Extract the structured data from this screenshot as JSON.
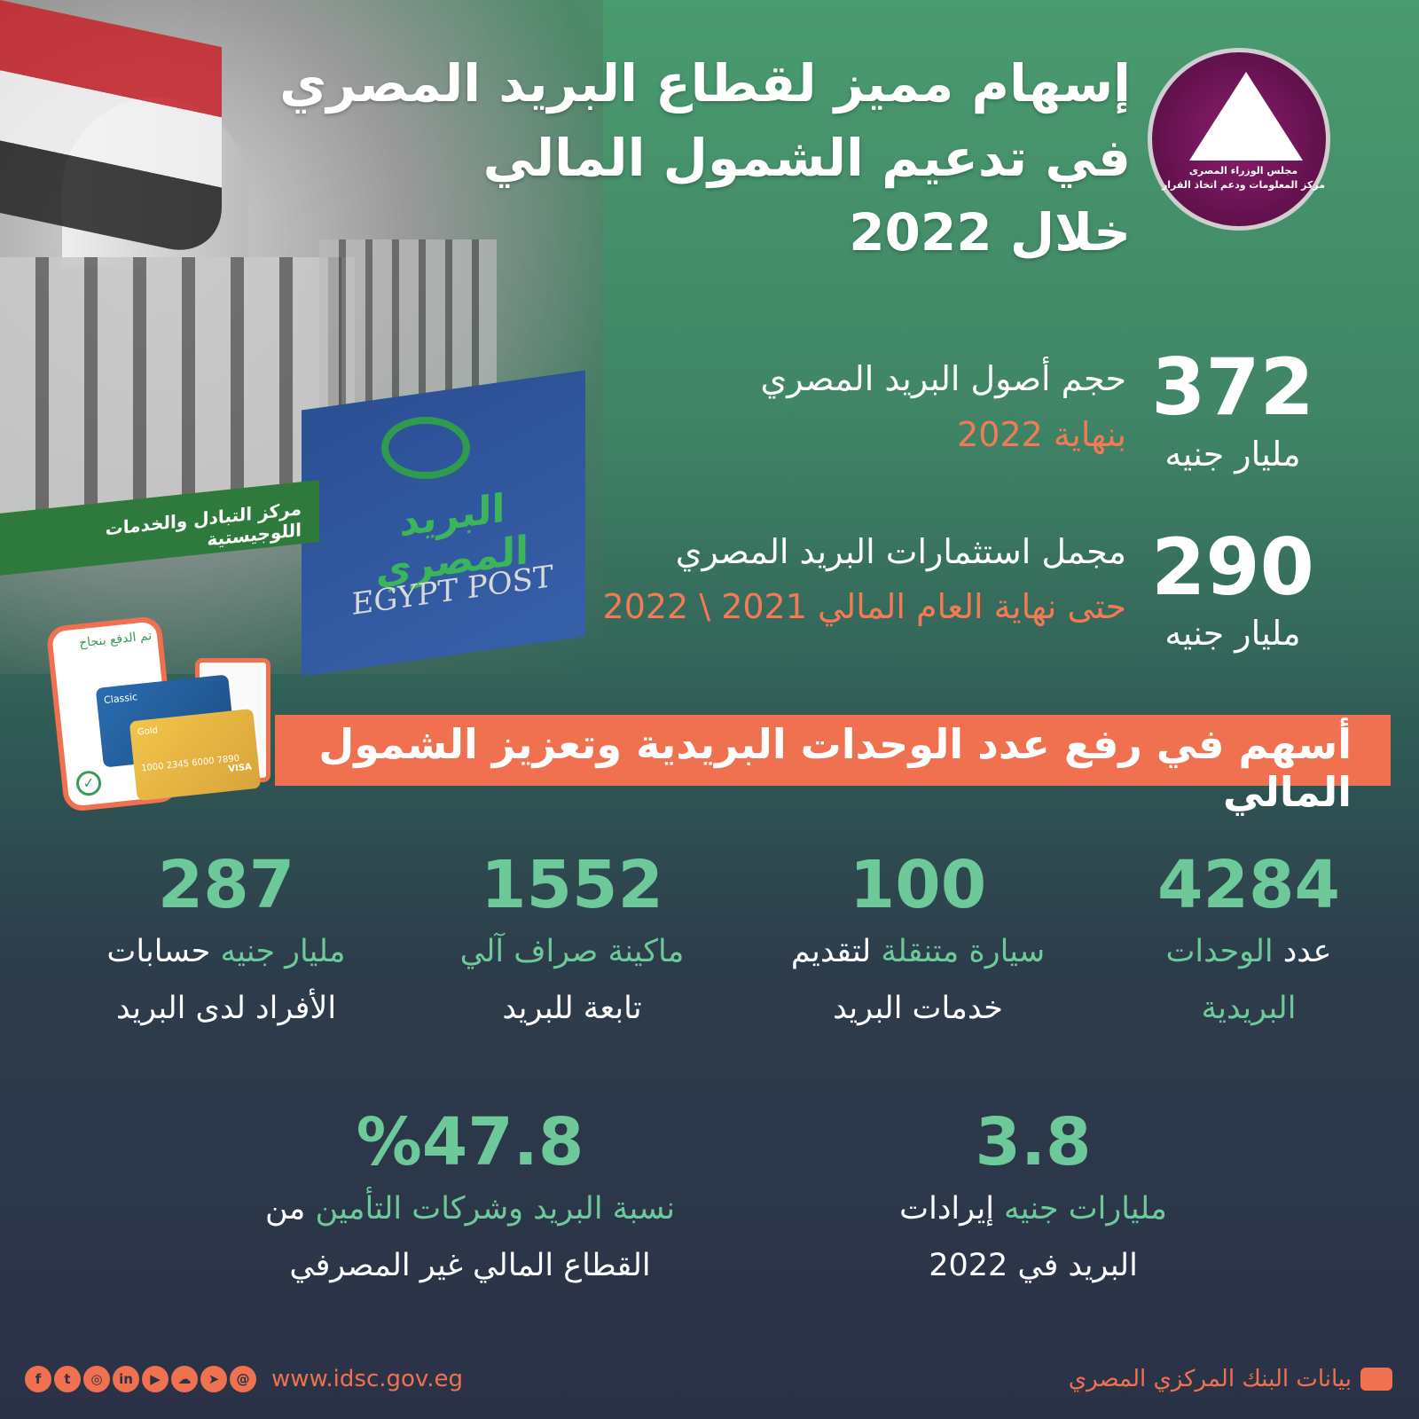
{
  "title": {
    "line1": "إسهام مميز لقطاع البريد المصري",
    "line2": "في تدعيم الشمول المالي",
    "line3": "خلال 2022"
  },
  "logo": {
    "line1": "مجلس الوزراء المصرى",
    "line2": "مركز المعلومات ودعم اتخاذ القرار"
  },
  "photo": {
    "sign_ar": "البريد المصري",
    "sign_en": "EGYPT POST",
    "green_sign": "مركز التبادل والخدمات اللوجيستية",
    "phone_text": "تم الدفع بنجاح",
    "card1": "Classic",
    "card2": "Gold",
    "card_number": "1000 2345 6000 7890",
    "card_brand": "VISA"
  },
  "stats": [
    {
      "value": "372",
      "unit": "مليار جنيه",
      "label": "حجم أصول البريد المصري",
      "sub": "بنهاية 2022"
    },
    {
      "value": "290",
      "unit": "مليار جنيه",
      "label": "مجمل استثمارات البريد المصري",
      "sub": "حتى نهاية العام المالي 2021 \\ 2022"
    }
  ],
  "banner": "أسهم في رفع عدد الوحدات البريدية وتعزيز الشمول المالي",
  "columns": [
    {
      "value": "4284",
      "a_green": "",
      "a_white": "عدد ",
      "b_green": "الوحدات",
      "line2": "البريدية",
      "line2_green": true
    },
    {
      "value": "100",
      "a_green": "سيارة متنقلة",
      "a_white": " لتقديم",
      "line2": "خدمات البريد"
    },
    {
      "value": "1552",
      "a_green": "ماكينة صراف آلي",
      "a_white": "",
      "line2": "تابعة للبريد"
    },
    {
      "value": "287",
      "a_green": "مليار جنيه",
      "a_white": " حسابات",
      "line2": "الأفراد لدى البريد"
    }
  ],
  "bottom": [
    {
      "value": "3.8",
      "green": "مليارات جنيه",
      "white": " إيرادات",
      "line2": "البريد في 2022"
    },
    {
      "value": "%47.8",
      "green": "نسبة البريد وشركات التأمين",
      "white": " من",
      "line2": "القطاع المالي غير المصرفي"
    }
  ],
  "footer": {
    "source": "بيانات البنك المركزي المصري",
    "url": "www.idsc.gov.eg",
    "social": [
      "facebook",
      "twitter",
      "instagram",
      "linkedin",
      "youtube",
      "soundcloud",
      "telegram",
      "threads"
    ]
  },
  "colors": {
    "accent": "#f0714f",
    "green": "#6dc99a",
    "bg_top": "#4a9b6f",
    "bg_bottom": "#2b3247"
  }
}
